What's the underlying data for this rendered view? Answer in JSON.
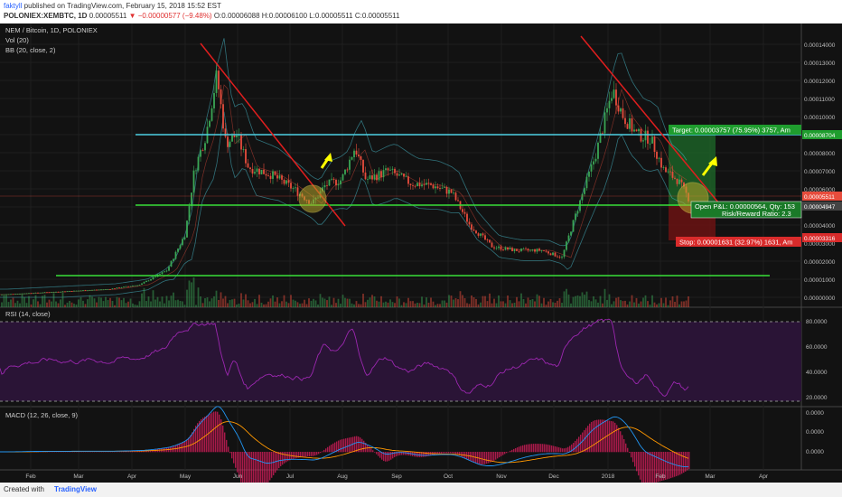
{
  "header": {
    "user": "faktyll",
    "published": " published on TradingView.com, February 15, 2018 15:52 EST",
    "symbol": "POLONIEX:XEMBTC, 1D",
    "price": "0.00005511",
    "change_arrow": "▼",
    "change": "−0.00000577 (−9.48%)",
    "ohlc": "O:0.00006088 H:0.00006100 L:0.00005511 C:0.00005511"
  },
  "legend": {
    "title": "NEM / Bitcoin, 1D, POLONIEX",
    "vol": "Vol (20)",
    "bb": "BB (20, close, 2)",
    "rsi": "RSI (14, close)",
    "macd": "MACD (12, 26, close, 9)"
  },
  "price_axis": [
    "0.00014000",
    "0.00013000",
    "0.00012000",
    "0.00011000",
    "0.00010000",
    "0.00009000",
    "0.00008000",
    "0.00007000",
    "0.00006000",
    "0.00005000",
    "0.00004000",
    "0.00003000",
    "0.00002000",
    "0.00001000",
    "0.00000000"
  ],
  "price_tags": {
    "target": "0.00008704",
    "current": "0.00005511",
    "entry": "0.00004947",
    "stop": "0.00003316"
  },
  "trade": {
    "target_label": "Target: 0.00003757 (75.95%) 3757, Am",
    "pnl_label": "Open P&L: 0.00000564, Qty: 153",
    "rr_label": "Risk/Reward Ratio: 2.3",
    "stop_label": "Stop: 0.00001631 (32.97%) 1631, Am"
  },
  "rsi_axis": [
    "80.0000",
    "60.0000",
    "40.0000",
    "20.0000"
  ],
  "macd_axis": [
    "0.0000",
    "0.0000",
    "0.0000"
  ],
  "time_axis": [
    "Feb",
    "Mar",
    "Apr",
    "May",
    "Jun",
    "Jul",
    "Aug",
    "Sep",
    "Oct",
    "Nov",
    "Dec",
    "2018",
    "Feb",
    "Mar",
    "Apr"
  ],
  "footer": {
    "created": "Created with",
    "brand": "TradingView"
  },
  "colors": {
    "bg": "#121212",
    "up": "#3aa655",
    "down": "#e74c3c",
    "rsi": "#9c27b0",
    "macd": "#2196f3",
    "signal": "#ff9800",
    "cyan": "#4dd0e1",
    "green_line": "#39e039",
    "red_line": "#e01e1e",
    "arrow": "#ffff00"
  },
  "chart_data": {
    "type": "candlestick",
    "title": "NEM / Bitcoin, 1D, POLONIEX",
    "x_ticks": [
      "Feb",
      "Mar",
      "Apr",
      "May",
      "Jun",
      "Jul",
      "Aug",
      "Sep",
      "Oct",
      "Nov",
      "Dec",
      "2018",
      "Feb",
      "Mar",
      "Apr"
    ],
    "ylim": [
      0,
      0.000145
    ],
    "points": [
      {
        "x": "Feb",
        "close": 2.2e-06
      },
      {
        "x": "Mar",
        "close": 3.5e-06
      },
      {
        "x": "Apr",
        "close": 9e-06
      },
      {
        "x": "Apr-late",
        "close": 2e-05
      },
      {
        "x": "May",
        "close": 4e-05
      },
      {
        "x": "May-mid",
        "close": 8e-05
      },
      {
        "x": "May-late",
        "close": 0.000124
      },
      {
        "x": "Jun",
        "close": 8.5e-05
      },
      {
        "x": "Jun-mid",
        "close": 7.2e-05
      },
      {
        "x": "Jul",
        "close": 6.3e-05
      },
      {
        "x": "Jul-mid",
        "close": 5.3e-05
      },
      {
        "x": "Aug",
        "close": 8.2e-05
      },
      {
        "x": "Aug-mid",
        "close": 6.4e-05
      },
      {
        "x": "Sep",
        "close": 6.2e-05
      },
      {
        "x": "Oct",
        "close": 5.8e-05
      },
      {
        "x": "Oct-mid",
        "close": 4e-05
      },
      {
        "x": "Nov",
        "close": 2.8e-05
      },
      {
        "x": "Dec",
        "close": 2.4e-05
      },
      {
        "x": "Dec-mid",
        "close": 5.2e-05
      },
      {
        "x": "Dec-late",
        "close": 7.8e-05
      },
      {
        "x": "2018",
        "close": 0.000115
      },
      {
        "x": "Jan-mid",
        "close": 9.5e-05
      },
      {
        "x": "Feb",
        "close": 7.5e-05
      },
      {
        "x": "Feb-mid",
        "close": 5.51e-05
      }
    ]
  }
}
